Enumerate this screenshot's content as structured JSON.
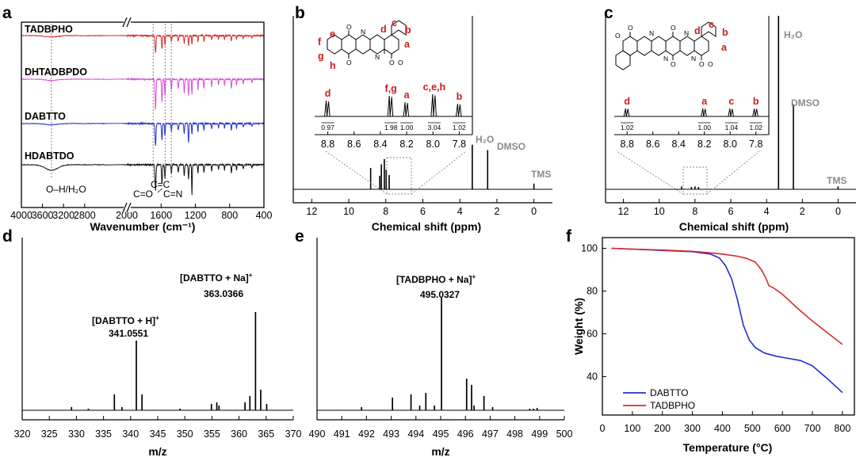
{
  "colors": {
    "red": "#d62b2b",
    "magenta": "#d94fd9",
    "blue": "#1f2fd0",
    "black": "#111111",
    "gray": "#8a8a8a",
    "annot_red": "#d01a1a"
  },
  "chart_data": [
    {
      "panel": "a",
      "type": "line",
      "title": "",
      "xlabel": "Wavenumber (cm⁻¹)",
      "ylabel": "",
      "xlim": [
        4000,
        400
      ],
      "xticks": [
        4000,
        3600,
        3200,
        2800,
        2000,
        1600,
        1200,
        800,
        400
      ],
      "axis_break": [
        2400,
        2100
      ],
      "series": [
        {
          "name": "TADBPHO",
          "color": "#d62b2b"
        },
        {
          "name": "DHTADBPDO",
          "color": "#d94fd9"
        },
        {
          "name": "DABTTO",
          "color": "#1f2fd0"
        },
        {
          "name": "HDABTDO",
          "color": "#111111"
        }
      ],
      "annotations": [
        "O–H/H₂O",
        "C=O",
        "C=C",
        "C=N"
      ],
      "marker_lines": [
        3430,
        1665,
        1590,
        1555
      ]
    },
    {
      "panel": "b",
      "type": "line",
      "title": "",
      "xlabel": "Chemical shift (ppm)",
      "xlim": [
        13,
        -1
      ],
      "xticks": [
        12,
        10,
        8,
        6,
        4,
        2,
        0
      ],
      "peaks": [
        {
          "x": 8.82,
          "y": 0.6
        },
        {
          "x": 8.33,
          "y": 0.38
        },
        {
          "x": 8.24,
          "y": 0.7
        },
        {
          "x": 8.08,
          "y": 0.85
        },
        {
          "x": 7.98,
          "y": 0.55
        },
        {
          "x": 7.82,
          "y": 0.4
        },
        {
          "x": 3.33,
          "y": 1.25
        },
        {
          "x": 2.5,
          "y": 1.1
        },
        {
          "x": 0.0,
          "y": 0.16
        }
      ],
      "solvent_labels": [
        "H₂O",
        "DMSO",
        "TMS"
      ],
      "inset": {
        "xlim": [
          8.9,
          7.7
        ],
        "xticks": [
          8.8,
          8.6,
          8.4,
          8.2,
          8.0,
          7.8
        ],
        "peaks": [
          {
            "label": "d",
            "x": 8.8,
            "integral": "0.97"
          },
          {
            "label": "f,g",
            "x": 8.32,
            "integral": "1.98"
          },
          {
            "label": "a",
            "x": 8.2,
            "integral": "1.00"
          },
          {
            "label": "c,e,h",
            "x": 7.99,
            "integral": "3.04"
          },
          {
            "label": "b",
            "x": 7.8,
            "integral": "1.02"
          }
        ],
        "structure_labels": [
          "c",
          "d",
          "b",
          "a",
          "e",
          "f",
          "g",
          "h"
        ]
      }
    },
    {
      "panel": "c",
      "type": "line",
      "title": "",
      "xlabel": "Chemical shift (ppm)",
      "xlim": [
        13,
        -1
      ],
      "xticks": [
        12,
        10,
        8,
        6,
        4,
        2,
        0
      ],
      "peaks": [
        {
          "x": 8.75,
          "y": 0.05
        },
        {
          "x": 8.2,
          "y": 0.04
        },
        {
          "x": 8.0,
          "y": 0.05
        },
        {
          "x": 7.8,
          "y": 0.04
        },
        {
          "x": 3.33,
          "y": 3.0
        },
        {
          "x": 2.5,
          "y": 1.45
        },
        {
          "x": 0.0,
          "y": 0.05
        }
      ],
      "solvent_labels": [
        "H₂O",
        "DMSO",
        "TMS"
      ],
      "inset": {
        "xlim": [
          8.9,
          7.7
        ],
        "xticks": [
          8.8,
          8.6,
          8.4,
          8.2,
          8.0,
          7.8
        ],
        "peaks": [
          {
            "label": "d",
            "x": 8.8,
            "integral": "1.02"
          },
          {
            "label": "a",
            "x": 8.2,
            "integral": "1.00"
          },
          {
            "label": "c",
            "x": 7.99,
            "integral": "1.04"
          },
          {
            "label": "b",
            "x": 7.8,
            "integral": "1.02"
          }
        ],
        "structure_labels": [
          "c",
          "d",
          "b",
          "a"
        ]
      }
    },
    {
      "panel": "d",
      "type": "bar",
      "title": "",
      "xlabel": "m/z",
      "xlim": [
        320,
        370
      ],
      "xticks": [
        320,
        325,
        330,
        335,
        340,
        345,
        350,
        355,
        360,
        365,
        370
      ],
      "peaks": [
        {
          "x": 329.1,
          "y": 0.02
        },
        {
          "x": 332.2,
          "y": 0.01
        },
        {
          "x": 337.0,
          "y": 0.1
        },
        {
          "x": 338.4,
          "y": 0.02
        },
        {
          "x": 341.0551,
          "y": 0.44
        },
        {
          "x": 342.1,
          "y": 0.1
        },
        {
          "x": 349.1,
          "y": 0.01
        },
        {
          "x": 354.9,
          "y": 0.04
        },
        {
          "x": 355.9,
          "y": 0.05
        },
        {
          "x": 356.3,
          "y": 0.03
        },
        {
          "x": 361.1,
          "y": 0.05
        },
        {
          "x": 362.0,
          "y": 0.09
        },
        {
          "x": 363.0366,
          "y": 0.62
        },
        {
          "x": 364.0,
          "y": 0.13
        },
        {
          "x": 365.1,
          "y": 0.04
        }
      ],
      "labels": [
        {
          "name": "[DABTTO + H]",
          "charge": "+",
          "mz": "341.0551"
        },
        {
          "name": "[DABTTO + Na]",
          "charge": "+",
          "mz": "363.0366"
        }
      ]
    },
    {
      "panel": "e",
      "type": "bar",
      "title": "",
      "xlabel": "m/z",
      "xlim": [
        490,
        500
      ],
      "xticks": [
        490,
        491,
        492,
        493,
        494,
        495,
        496,
        497,
        498,
        499,
        500
      ],
      "peaks": [
        {
          "x": 491.8,
          "y": 0.02
        },
        {
          "x": 493.05,
          "y": 0.08
        },
        {
          "x": 493.8,
          "y": 0.1
        },
        {
          "x": 494.15,
          "y": 0.03
        },
        {
          "x": 494.4,
          "y": 0.11
        },
        {
          "x": 494.75,
          "y": 0.03
        },
        {
          "x": 495.0327,
          "y": 0.71
        },
        {
          "x": 496.05,
          "y": 0.2
        },
        {
          "x": 496.25,
          "y": 0.16
        },
        {
          "x": 496.35,
          "y": 0.03
        },
        {
          "x": 496.75,
          "y": 0.09
        },
        {
          "x": 497.1,
          "y": 0.02
        },
        {
          "x": 498.6,
          "y": 0.01
        },
        {
          "x": 498.75,
          "y": 0.01
        },
        {
          "x": 498.9,
          "y": 0.015
        }
      ],
      "labels": [
        {
          "name": "[TADBPHO + Na]",
          "charge": "+",
          "mz": "495.0327"
        }
      ]
    },
    {
      "panel": "f",
      "type": "line",
      "title": "",
      "xlabel": "Temperature (°C)",
      "ylabel": "Weight (%)",
      "xlim": [
        0,
        840
      ],
      "ylim": [
        22,
        105
      ],
      "xticks": [
        0,
        100,
        200,
        300,
        400,
        500,
        600,
        700,
        800
      ],
      "yticks": [
        40,
        60,
        80,
        100
      ],
      "series": [
        {
          "name": "DABTTO",
          "color": "#1f2fd0",
          "x": [
            30,
            100,
            200,
            300,
            360,
            390,
            410,
            430,
            450,
            470,
            490,
            510,
            540,
            580,
            620,
            660,
            700,
            750,
            800
          ],
          "y": [
            100,
            99.6,
            99,
            98.4,
            97.3,
            95.5,
            92,
            86,
            76,
            64,
            57,
            53.5,
            51,
            49.5,
            48.5,
            47.5,
            45,
            39,
            32.5
          ]
        },
        {
          "name": "TADBPHO",
          "color": "#d62b2b",
          "x": [
            30,
            100,
            200,
            300,
            350,
            400,
            450,
            480,
            510,
            530,
            545,
            555,
            570,
            600,
            650,
            700,
            750,
            800
          ],
          "y": [
            100,
            99.6,
            99.2,
            98.6,
            98,
            97.3,
            96.3,
            95.3,
            93.5,
            90,
            86,
            82.5,
            81.5,
            78.5,
            72,
            66,
            60.5,
            55
          ]
        }
      ],
      "legend_position": "bottom-left"
    }
  ],
  "figure_labels": {
    "a": "a",
    "b": "b",
    "c": "c",
    "d": "d",
    "e": "e",
    "f": "f"
  },
  "mol_symbols": {
    "oxygen": "O",
    "nitrogen": "N"
  }
}
